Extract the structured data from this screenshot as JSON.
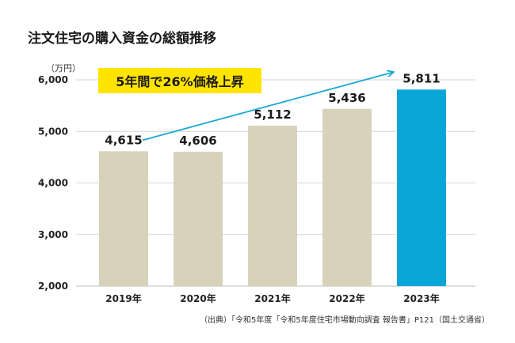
{
  "title": "注文住宅の購入資金の総額推移",
  "unit": "（万円）",
  "callout": "5年間で26%価格上昇",
  "source": "（出典）「令和5年度「令和5年度住宅市場動向調査 報告書」P121（国土交通省）",
  "colors": {
    "bar": "#d8d2bb",
    "highlight": "#08a6d6",
    "arrow": "#1aa9d4",
    "grid": "#d6d6d6",
    "callout_bg": "#ffe400"
  },
  "chart_data": {
    "type": "bar",
    "categories": [
      "2019年",
      "2020年",
      "2021年",
      "2022年",
      "2023年"
    ],
    "values": [
      4615,
      4606,
      5112,
      5436,
      5811
    ],
    "value_labels": [
      "4,615",
      "4,606",
      "5,112",
      "5,436",
      "5,811"
    ],
    "highlight_index": 4,
    "ylim": [
      2000,
      6000
    ],
    "yticks": [
      2000,
      3000,
      4000,
      5000,
      6000
    ],
    "ytick_labels": [
      "2,000",
      "3,000",
      "4,000",
      "5,000",
      "6,000"
    ],
    "grid": true,
    "annotation": {
      "type": "arrow",
      "from_index": 0,
      "to_index": 4
    }
  }
}
